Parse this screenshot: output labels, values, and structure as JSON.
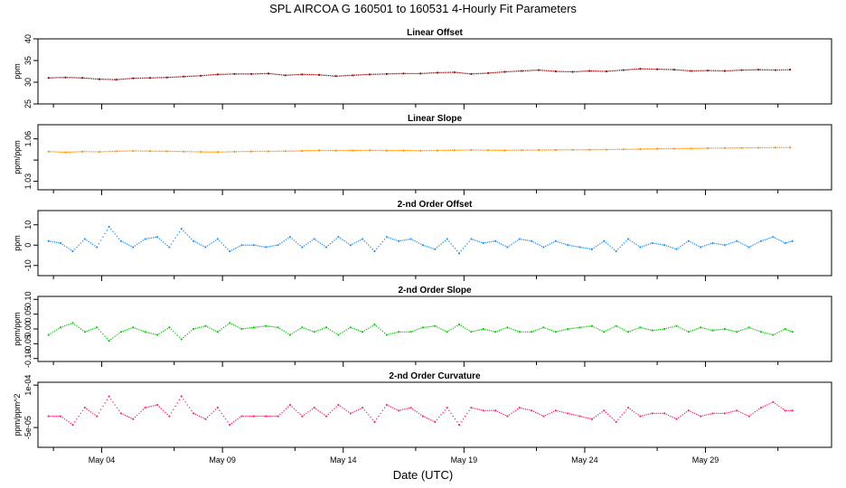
{
  "title": "SPL   AIRCOA G   160501 to 160531   4-Hourly Fit Parameters",
  "xlabel": "Date (UTC)",
  "x_ticks": [
    {
      "day": 4,
      "label": "May 04"
    },
    {
      "day": 9,
      "label": "May 09"
    },
    {
      "day": 14,
      "label": "May 14"
    },
    {
      "day": 19,
      "label": "May 19"
    },
    {
      "day": 24,
      "label": "May 24"
    },
    {
      "day": 29,
      "label": "May 29"
    }
  ],
  "x_minor_ticks": [
    2,
    7,
    12,
    17,
    22,
    27,
    32
  ],
  "xlim": [
    1.36,
    34.22
  ],
  "chart_data": [
    {
      "type": "scatter",
      "title": "Linear Offset",
      "ylabel": "ppm",
      "color": "#8b0000",
      "ylim": [
        25,
        40
      ],
      "yticks": [
        "25",
        "30",
        "35",
        "40"
      ],
      "grid": false,
      "series": [
        {
          "x": [
            1.8,
            2.5,
            3.2,
            3.9,
            4.6,
            5.3,
            6.0,
            6.7,
            7.4,
            8.1,
            8.8,
            9.5,
            10.2,
            10.9,
            11.6,
            12.3,
            13.0,
            13.7,
            14.4,
            15.1,
            15.8,
            16.5,
            17.2,
            17.9,
            18.6,
            19.3,
            20.0,
            20.7,
            21.4,
            22.1,
            22.8,
            23.5,
            24.2,
            24.9,
            25.6,
            26.3,
            27.0,
            27.7,
            28.4,
            29.1,
            29.8,
            30.5,
            31.2,
            31.9,
            32.5
          ],
          "values": [
            31.0,
            31.1,
            31.0,
            30.7,
            30.6,
            30.9,
            31.0,
            31.1,
            31.3,
            31.5,
            31.8,
            31.9,
            31.9,
            32.0,
            31.6,
            31.8,
            31.7,
            31.4,
            31.6,
            31.8,
            31.9,
            32.0,
            32.0,
            32.2,
            32.3,
            31.9,
            32.1,
            32.4,
            32.6,
            32.8,
            32.5,
            32.4,
            32.6,
            32.5,
            32.8,
            33.1,
            33.0,
            32.9,
            32.6,
            32.7,
            32.6,
            32.8,
            32.9,
            32.8,
            32.9
          ]
        }
      ]
    },
    {
      "type": "scatter",
      "title": "Linear Slope",
      "ylabel": "ppm/ppm",
      "color": "#ff8c00",
      "ylim": [
        1.024,
        1.07
      ],
      "yticks": [
        "1.03",
        "",
        "1.06"
      ],
      "ytick_values": [
        1.03,
        1.045,
        1.06
      ],
      "grid": false,
      "series": [
        {
          "x": [
            1.8,
            2.5,
            3.2,
            3.9,
            4.6,
            5.3,
            6.0,
            6.7,
            7.4,
            8.1,
            8.8,
            9.5,
            10.2,
            10.9,
            11.6,
            12.3,
            13.0,
            13.7,
            14.4,
            15.1,
            15.8,
            16.5,
            17.2,
            17.9,
            18.6,
            19.3,
            20.0,
            20.7,
            21.4,
            22.1,
            22.8,
            23.5,
            24.2,
            24.9,
            25.6,
            26.3,
            27.0,
            27.7,
            28.4,
            29.1,
            29.8,
            30.5,
            31.2,
            31.9,
            32.5
          ],
          "values": [
            1.051,
            1.0505,
            1.051,
            1.0508,
            1.0512,
            1.0515,
            1.0513,
            1.0512,
            1.051,
            1.0508,
            1.0507,
            1.0509,
            1.0511,
            1.0512,
            1.0513,
            1.0515,
            1.0518,
            1.0517,
            1.0518,
            1.0519,
            1.0517,
            1.0518,
            1.0516,
            1.0518,
            1.052,
            1.0521,
            1.052,
            1.0519,
            1.052,
            1.0521,
            1.0522,
            1.0522,
            1.0523,
            1.0524,
            1.0526,
            1.0527,
            1.053,
            1.0531,
            1.0532,
            1.0534,
            1.0535,
            1.0536,
            1.0537,
            1.0538,
            1.0539
          ]
        }
      ]
    },
    {
      "type": "scatter",
      "title": "2-nd Order Offset",
      "ylabel": "ppm",
      "color": "#1e90ff",
      "ylim": [
        -15,
        17
      ],
      "yticks": [
        "-10",
        "0",
        "10"
      ],
      "ytick_values": [
        -10,
        0,
        10
      ],
      "grid": false,
      "series": [
        {
          "x": [
            1.8,
            2.3,
            2.8,
            3.3,
            3.8,
            4.3,
            4.8,
            5.3,
            5.8,
            6.3,
            6.8,
            7.3,
            7.8,
            8.3,
            8.8,
            9.3,
            9.8,
            10.3,
            10.8,
            11.3,
            11.8,
            12.3,
            12.8,
            13.3,
            13.8,
            14.3,
            14.8,
            15.3,
            15.8,
            16.3,
            16.8,
            17.3,
            17.8,
            18.3,
            18.8,
            19.3,
            19.8,
            20.3,
            20.8,
            21.3,
            21.8,
            22.3,
            22.8,
            23.3,
            23.8,
            24.3,
            24.8,
            25.3,
            25.8,
            26.3,
            26.8,
            27.3,
            27.8,
            28.3,
            28.8,
            29.3,
            29.8,
            30.3,
            30.8,
            31.3,
            31.8,
            32.3,
            32.6
          ],
          "values": [
            2,
            1,
            -3,
            3,
            -1,
            9,
            2,
            -1,
            3,
            4,
            -1,
            8,
            2,
            -1,
            3,
            -3,
            0,
            0,
            -1,
            0,
            4,
            -1,
            3,
            -1,
            4,
            0,
            3,
            -3,
            4,
            2,
            3,
            0,
            -2,
            3,
            -4,
            3,
            1,
            2,
            -1,
            3,
            2,
            -1,
            2,
            0,
            -1,
            -2,
            2,
            -3,
            3,
            -1,
            1,
            0,
            -2,
            2,
            -1,
            1,
            0,
            2,
            -1,
            2,
            4,
            1,
            2
          ]
        }
      ]
    },
    {
      "type": "scatter",
      "title": "2-nd Order Slope",
      "ylabel": "ppm/ppm",
      "color": "#00c800",
      "ylim": [
        -0.11,
        0.11
      ],
      "yticks": [
        "-0.10",
        "-0.05",
        "0.00",
        "0.05",
        "0.10"
      ],
      "ytick_values": [
        -0.1,
        -0.05,
        0.0,
        0.05,
        0.1
      ],
      "grid": false,
      "series": [
        {
          "x": [
            1.8,
            2.3,
            2.8,
            3.3,
            3.8,
            4.3,
            4.8,
            5.3,
            5.8,
            6.3,
            6.8,
            7.3,
            7.8,
            8.3,
            8.8,
            9.3,
            9.8,
            10.3,
            10.8,
            11.3,
            11.8,
            12.3,
            12.8,
            13.3,
            13.8,
            14.3,
            14.8,
            15.3,
            15.8,
            16.3,
            16.8,
            17.3,
            17.8,
            18.3,
            18.8,
            19.3,
            19.8,
            20.3,
            20.8,
            21.3,
            21.8,
            22.3,
            22.8,
            23.3,
            23.8,
            24.3,
            24.8,
            25.3,
            25.8,
            26.3,
            26.8,
            27.3,
            27.8,
            28.3,
            28.8,
            29.3,
            29.8,
            30.3,
            30.8,
            31.3,
            31.8,
            32.3,
            32.6
          ],
          "values": [
            -0.02,
            0.005,
            0.02,
            -0.01,
            0.005,
            -0.04,
            -0.01,
            0.005,
            -0.01,
            -0.02,
            0.005,
            -0.035,
            0.0,
            0.01,
            -0.01,
            0.02,
            0.0,
            0.005,
            0.01,
            0.005,
            -0.02,
            0.005,
            -0.01,
            0.005,
            -0.02,
            0.005,
            -0.01,
            0.015,
            -0.02,
            -0.01,
            -0.01,
            0.005,
            0.01,
            -0.01,
            0.015,
            -0.01,
            0.0,
            -0.01,
            0.005,
            -0.01,
            -0.01,
            0.005,
            -0.01,
            0.0,
            0.005,
            0.01,
            -0.01,
            0.01,
            -0.01,
            0.005,
            -0.005,
            0.0,
            0.01,
            -0.01,
            0.005,
            -0.005,
            0.0,
            -0.01,
            0.005,
            -0.01,
            -0.02,
            0.0,
            -0.01
          ]
        }
      ]
    },
    {
      "type": "scatter",
      "title": "2-nd Order Curvature",
      "ylabel": "ppm/ppm^2",
      "color": "#ff2060",
      "ylim": [
        -0.00012,
        0.00011
      ],
      "yticks": [
        "-5e-05",
        "1e-04"
      ],
      "ytick_values": [
        -5e-05,
        0.0001
      ],
      "grid": false,
      "series": [
        {
          "x": [
            1.8,
            2.3,
            2.8,
            3.3,
            3.8,
            4.3,
            4.8,
            5.3,
            5.8,
            6.3,
            6.8,
            7.3,
            7.8,
            8.3,
            8.8,
            9.3,
            9.8,
            10.3,
            10.8,
            11.3,
            11.8,
            12.3,
            12.8,
            13.3,
            13.8,
            14.3,
            14.8,
            15.3,
            15.8,
            16.3,
            16.8,
            17.3,
            17.8,
            18.3,
            18.8,
            19.3,
            19.8,
            20.3,
            20.8,
            21.3,
            21.8,
            22.3,
            22.8,
            23.3,
            23.8,
            24.3,
            24.8,
            25.3,
            25.8,
            26.3,
            26.8,
            27.3,
            27.8,
            28.3,
            28.8,
            29.3,
            29.8,
            30.3,
            30.8,
            31.3,
            31.8,
            32.3,
            32.6
          ],
          "values": [
            -1e-05,
            -1e-05,
            -4e-05,
            2e-05,
            -1e-05,
            6e-05,
            0.0,
            -2e-05,
            2e-05,
            3e-05,
            -1e-05,
            6e-05,
            0.0,
            -2e-05,
            2e-05,
            -4e-05,
            -1e-05,
            -1e-05,
            -1e-05,
            -1e-05,
            3e-05,
            -1e-05,
            2e-05,
            -1e-05,
            3e-05,
            0.0,
            2e-05,
            -3e-05,
            3e-05,
            1e-05,
            2e-05,
            -1e-05,
            -3e-05,
            2e-05,
            -4e-05,
            2e-05,
            1e-05,
            1e-05,
            -1e-05,
            2e-05,
            1e-05,
            -1e-05,
            1e-05,
            0.0,
            -1e-05,
            -2e-05,
            1e-05,
            -3e-05,
            2e-05,
            -1e-05,
            0.0,
            0.0,
            -2e-05,
            1e-05,
            -1e-05,
            0.0,
            0.0,
            1e-05,
            -1e-05,
            2e-05,
            4e-05,
            1e-05,
            1e-05
          ]
        }
      ]
    }
  ]
}
